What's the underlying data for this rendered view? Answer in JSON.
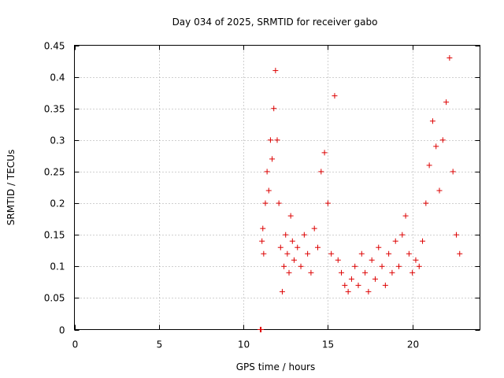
{
  "chart_data": {
    "type": "scatter",
    "title": "Day 034 of 2025, SRMTID for receiver gabo",
    "xlabel": "GPS time / hours",
    "ylabel": "SRMTID / TECUs",
    "xlim": [
      0,
      24
    ],
    "ylim": [
      0,
      0.45
    ],
    "x_ticks": [
      0,
      5,
      10,
      15,
      20
    ],
    "x_tick_labels": [
      "0",
      "5",
      "10",
      "15",
      "20"
    ],
    "y_ticks": [
      0,
      0.05,
      0.1,
      0.15,
      0.2,
      0.25,
      0.3,
      0.35,
      0.4,
      0.45
    ],
    "y_tick_labels": [
      "0",
      "0.05",
      "0.1",
      "0.15",
      "0.2",
      "0.25",
      "0.3",
      "0.35",
      "0.4",
      "0.45"
    ],
    "grid": true,
    "marker": "+",
    "color": "#dd0000",
    "series": [
      {
        "name": "SRMTID",
        "x": [
          11.0,
          11.05,
          11.1,
          11.15,
          11.2,
          11.3,
          11.4,
          11.5,
          11.6,
          11.7,
          11.8,
          11.9,
          12.0,
          12.1,
          12.2,
          12.3,
          12.4,
          12.5,
          12.6,
          12.7,
          12.8,
          12.9,
          13.0,
          13.2,
          13.4,
          13.6,
          13.8,
          14.0,
          14.2,
          14.4,
          14.6,
          14.8,
          15.0,
          15.2,
          15.4,
          15.6,
          15.8,
          16.0,
          16.2,
          16.4,
          16.6,
          16.8,
          17.0,
          17.2,
          17.4,
          17.6,
          17.8,
          18.0,
          18.2,
          18.4,
          18.6,
          18.8,
          19.0,
          19.2,
          19.4,
          19.6,
          19.8,
          20.0,
          20.2,
          20.4,
          20.6,
          20.8,
          21.0,
          21.2,
          21.4,
          21.6,
          21.8,
          22.0,
          22.2,
          22.4,
          22.6,
          22.8
        ],
        "y": [
          0.0,
          0.0,
          0.14,
          0.16,
          0.12,
          0.2,
          0.25,
          0.22,
          0.3,
          0.27,
          0.35,
          0.41,
          0.3,
          0.2,
          0.13,
          0.06,
          0.1,
          0.15,
          0.12,
          0.09,
          0.18,
          0.14,
          0.11,
          0.13,
          0.1,
          0.15,
          0.12,
          0.09,
          0.16,
          0.13,
          0.25,
          0.28,
          0.2,
          0.12,
          0.37,
          0.11,
          0.09,
          0.07,
          0.06,
          0.08,
          0.1,
          0.07,
          0.12,
          0.09,
          0.06,
          0.11,
          0.08,
          0.13,
          0.1,
          0.07,
          0.12,
          0.09,
          0.14,
          0.1,
          0.15,
          0.18,
          0.12,
          0.09,
          0.11,
          0.1,
          0.14,
          0.2,
          0.26,
          0.33,
          0.29,
          0.22,
          0.3,
          0.36,
          0.43,
          0.25,
          0.15,
          0.12
        ]
      }
    ]
  }
}
